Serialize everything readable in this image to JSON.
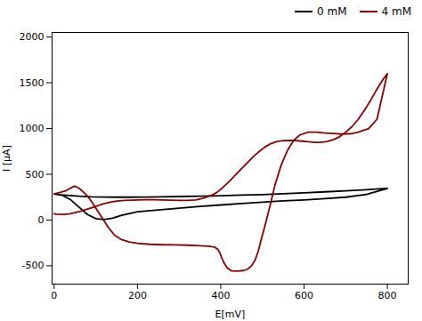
{
  "chart_data": {
    "type": "line",
    "xlabel": "E[mV]",
    "ylabel": "I [μA]",
    "xlim": [
      -5,
      850
    ],
    "ylim": [
      -700,
      2050
    ],
    "xticks": [
      0,
      200,
      400,
      600,
      800
    ],
    "yticks": [
      -500,
      0,
      500,
      1000,
      1500,
      2000
    ],
    "grid": false,
    "legend": "upper right",
    "series": [
      {
        "name": "0 mM",
        "color": "#000000",
        "x": [
          0,
          20,
          40,
          60,
          80,
          100,
          120,
          140,
          160,
          200,
          250,
          300,
          350,
          400,
          450,
          500,
          550,
          600,
          650,
          700,
          750,
          800,
          800,
          780,
          750,
          700,
          650,
          600,
          550,
          500,
          450,
          400,
          350,
          300,
          260,
          220,
          180,
          150,
          120,
          90,
          60,
          30,
          5,
          0
        ],
        "values": [
          285,
          270,
          220,
          140,
          60,
          15,
          5,
          20,
          50,
          90,
          110,
          130,
          150,
          165,
          180,
          195,
          210,
          220,
          235,
          250,
          280,
          345,
          345,
          340,
          332,
          320,
          308,
          298,
          288,
          278,
          272,
          265,
          260,
          257,
          254,
          252,
          250,
          250,
          252,
          254,
          260,
          270,
          280,
          285
        ]
      },
      {
        "name": "4 mM",
        "color": "#8B0000",
        "x": [
          0,
          8,
          18,
          28,
          38,
          48,
          55,
          62,
          68,
          75,
          82,
          90,
          100,
          110,
          120,
          130,
          145,
          160,
          180,
          200,
          230,
          260,
          290,
          320,
          350,
          370,
          385,
          393,
          398,
          402,
          408,
          415,
          425,
          440,
          455,
          465,
          475,
          483,
          490,
          498,
          508,
          518,
          530,
          545,
          560,
          575,
          590,
          610,
          630,
          650,
          670,
          690,
          710,
          730,
          755,
          775,
          800,
          800,
          790,
          775,
          760,
          745,
          730,
          715,
          700,
          685,
          670,
          655,
          640,
          625,
          610,
          595,
          580,
          565,
          550,
          535,
          520,
          505,
          490,
          480,
          470,
          460,
          450,
          440,
          430,
          420,
          410,
          400,
          390,
          375,
          358,
          340,
          320,
          300,
          280,
          260,
          240,
          220,
          200,
          185,
          170,
          155,
          140,
          125,
          110,
          95,
          80,
          65,
          50,
          38,
          25,
          12,
          5,
          0
        ],
        "values": [
          285,
          295,
          308,
          320,
          345,
          370,
          360,
          340,
          315,
          285,
          250,
          200,
          130,
          60,
          -10,
          -80,
          -165,
          -210,
          -240,
          -255,
          -265,
          -270,
          -272,
          -275,
          -280,
          -285,
          -295,
          -320,
          -360,
          -410,
          -470,
          -520,
          -555,
          -558,
          -552,
          -535,
          -495,
          -430,
          -340,
          -200,
          -30,
          150,
          380,
          600,
          760,
          870,
          930,
          960,
          960,
          950,
          945,
          940,
          942,
          960,
          1000,
          1100,
          1600,
          1600,
          1540,
          1430,
          1310,
          1200,
          1100,
          1020,
          960,
          910,
          878,
          858,
          848,
          848,
          855,
          862,
          868,
          870,
          868,
          858,
          835,
          795,
          740,
          700,
          655,
          608,
          562,
          515,
          468,
          422,
          378,
          335,
          300,
          265,
          238,
          220,
          215,
          215,
          218,
          220,
          222,
          222,
          220,
          218,
          215,
          210,
          200,
          185,
          165,
          142,
          120,
          98,
          80,
          68,
          62,
          62,
          65,
          70
        ]
      }
    ]
  }
}
